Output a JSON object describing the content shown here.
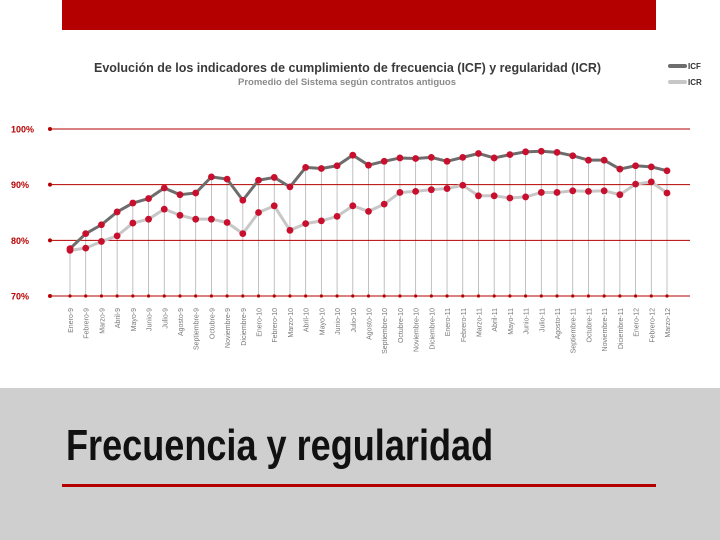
{
  "slide": {
    "title": "Frecuencia y regularidad"
  },
  "colors": {
    "accent": "#b50000",
    "icf_line": "#6d6d6d",
    "icr_line": "#c7c7c7",
    "marker": "#c8102e",
    "grid": "#b50000"
  },
  "chart_data": {
    "type": "line",
    "title": "Evolución de los indicadores de cumplimiento de frecuencia (ICF) y regularidad (ICR)",
    "subtitle": "Promedio del Sistema según contratos antiguos",
    "ylim": [
      70,
      100
    ],
    "y_ticks": [
      {
        "value": 100,
        "label": "100%"
      },
      {
        "value": 90,
        "label": "90%"
      },
      {
        "value": 80,
        "label": "80%"
      },
      {
        "value": 70,
        "label": "70%"
      }
    ],
    "legend": {
      "position": "top-right",
      "entries": [
        "ICF",
        "ICR"
      ]
    },
    "categories": [
      "Enero-9",
      "Febrero-9",
      "Marzo-9",
      "Abril-9",
      "Mayo-9",
      "Junio-9",
      "Julio-9",
      "Agosto-9",
      "Septiembre-9",
      "Octubre-9",
      "Noviembre-9",
      "Diciembre-9",
      "Enero-10",
      "Febrero-10",
      "Marzo-10",
      "Abril-10",
      "Mayo-10",
      "Junio-10",
      "Julio-10",
      "Agosto-10",
      "Septiembre-10",
      "Octubre-10",
      "Noviembre-10",
      "Diciembre-10",
      "Enero-11",
      "Febrero-11",
      "Marzo-11",
      "Abril-11",
      "Mayo-11",
      "Junio-11",
      "Julio-11",
      "Agosto-11",
      "Septiembre-11",
      "Octubre-11",
      "Noviembre-11",
      "Diciembre-11",
      "Enero-12",
      "Febrero-12",
      "Marzo-12"
    ],
    "series": [
      {
        "name": "ICF",
        "values": [
          78.5,
          81.2,
          82.8,
          85.1,
          86.7,
          87.5,
          89.4,
          88.2,
          88.5,
          91.4,
          91.0,
          87.2,
          90.8,
          91.3,
          89.6,
          93.1,
          92.9,
          93.4,
          95.3,
          93.5,
          94.2,
          94.8,
          94.7,
          94.9,
          94.2,
          94.9,
          95.6,
          94.8,
          95.4,
          95.9,
          96.0,
          95.8,
          95.2,
          94.4,
          94.4,
          92.8,
          93.4,
          93.2,
          92.5
        ]
      },
      {
        "name": "ICR",
        "values": [
          78.2,
          78.6,
          79.8,
          80.8,
          83.1,
          83.8,
          85.6,
          84.5,
          83.8,
          83.8,
          83.2,
          81.2,
          85.0,
          86.2,
          81.8,
          83.0,
          83.5,
          84.3,
          86.2,
          85.2,
          86.5,
          88.6,
          88.8,
          89.1,
          89.3,
          89.9,
          88.0,
          88.0,
          87.6,
          87.8,
          88.6,
          88.6,
          88.9,
          88.8,
          88.9,
          88.2,
          90.1,
          90.5,
          88.5
        ]
      }
    ]
  }
}
